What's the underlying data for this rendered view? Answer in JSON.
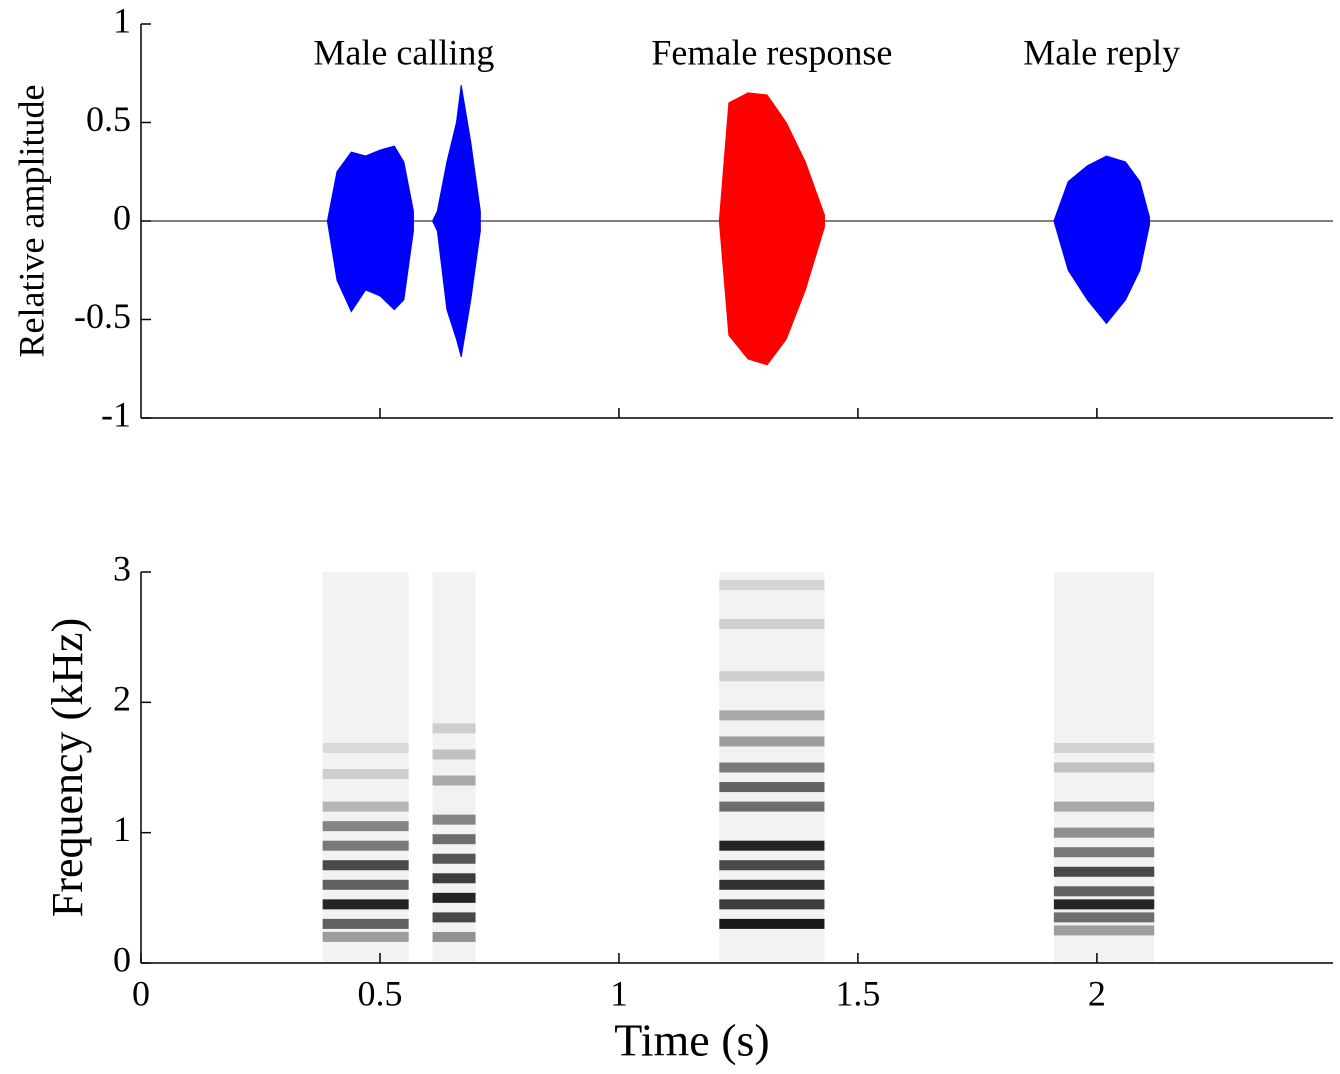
{
  "chart_data": [
    {
      "type": "waveform",
      "ylabel": "Relative amplitude",
      "annotations": [
        "Male calling",
        "Female response",
        "Male reply"
      ],
      "xlim": [
        0,
        2.494
      ],
      "ylim": [
        -1,
        1
      ],
      "xticks": [
        0.5,
        1,
        1.5,
        2
      ],
      "yticks": [
        -1,
        -0.5,
        0,
        0.5,
        1
      ],
      "show_xtick_labels": false,
      "series": [
        {
          "color": "#0000ff",
          "x": [
            0.39,
            0.41,
            0.44,
            0.47,
            0.5,
            0.53,
            0.55,
            0.57
          ],
          "values": [
            0,
            0.25,
            0.35,
            0.33,
            0.36,
            0.38,
            0.3,
            0.05
          ],
          "lower": [
            0,
            -0.3,
            -0.46,
            -0.35,
            -0.38,
            -0.45,
            -0.4,
            -0.05
          ]
        },
        {
          "color": "#0000ff",
          "x": [
            0.61,
            0.62,
            0.64,
            0.66,
            0.67,
            0.69,
            0.71
          ],
          "values": [
            0,
            0.05,
            0.3,
            0.5,
            0.69,
            0.4,
            0.05
          ],
          "lower": [
            0,
            -0.05,
            -0.45,
            -0.6,
            -0.69,
            -0.4,
            -0.05
          ]
        },
        {
          "color": "#ff0000",
          "x": [
            1.21,
            1.23,
            1.27,
            1.31,
            1.35,
            1.39,
            1.43
          ],
          "values": [
            0,
            0.6,
            0.65,
            0.64,
            0.5,
            0.3,
            0.03
          ],
          "lower": [
            0,
            -0.58,
            -0.7,
            -0.73,
            -0.6,
            -0.35,
            -0.03
          ]
        },
        {
          "color": "#0000ff",
          "x": [
            1.91,
            1.94,
            1.98,
            2.02,
            2.06,
            2.09,
            2.11
          ],
          "values": [
            0,
            0.2,
            0.28,
            0.33,
            0.3,
            0.2,
            0.02
          ],
          "lower": [
            0,
            -0.25,
            -0.4,
            -0.52,
            -0.4,
            -0.25,
            -0.02
          ]
        }
      ]
    },
    {
      "type": "spectrogram",
      "xlabel": "Time (s)",
      "ylabel": "Frequency (kHz)",
      "xlim": [
        0,
        2.494
      ],
      "ylim": [
        0,
        3
      ],
      "xticks": [
        0,
        0.5,
        1,
        1.5,
        2
      ],
      "yticks": [
        0,
        1,
        2,
        3
      ],
      "show_xtick_labels": true,
      "color": "#000000",
      "segments": [
        {
          "x": [
            0.38,
            0.56
          ],
          "harmonics": [
            0.2,
            0.3,
            0.45,
            0.6,
            0.75,
            0.9,
            1.05,
            1.2,
            1.45,
            1.65
          ],
          "intensity": [
            0.35,
            0.6,
            0.85,
            0.6,
            0.7,
            0.5,
            0.45,
            0.25,
            0.15,
            0.1
          ]
        },
        {
          "x": [
            0.61,
            0.7
          ],
          "harmonics": [
            0.2,
            0.35,
            0.5,
            0.65,
            0.8,
            0.95,
            1.1,
            1.4,
            1.6,
            1.8
          ],
          "intensity": [
            0.4,
            0.7,
            0.85,
            0.75,
            0.65,
            0.55,
            0.45,
            0.3,
            0.2,
            0.15
          ]
        },
        {
          "x": [
            1.21,
            1.43
          ],
          "harmonics": [
            0.3,
            0.45,
            0.6,
            0.75,
            0.9,
            1.2,
            1.35,
            1.5,
            1.7,
            1.9,
            2.2,
            2.6,
            2.9
          ],
          "intensity": [
            0.9,
            0.75,
            0.8,
            0.7,
            0.85,
            0.55,
            0.6,
            0.5,
            0.35,
            0.3,
            0.15,
            0.15,
            0.12
          ]
        },
        {
          "x": [
            1.91,
            2.12
          ],
          "harmonics": [
            0.25,
            0.35,
            0.45,
            0.55,
            0.7,
            0.85,
            1.0,
            1.2,
            1.5,
            1.65
          ],
          "intensity": [
            0.35,
            0.55,
            0.85,
            0.6,
            0.7,
            0.5,
            0.4,
            0.3,
            0.2,
            0.12
          ]
        }
      ]
    }
  ]
}
